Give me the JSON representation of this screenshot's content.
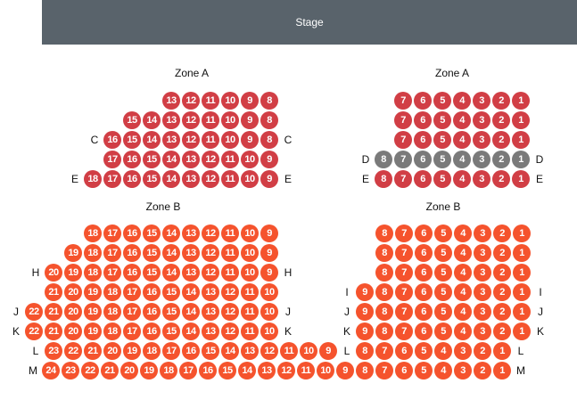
{
  "stage": {
    "label": "Stage"
  },
  "colors": {
    "zone_a": "#d13e45",
    "zone_b": "#f5532d",
    "unavailable": "#7a7a7a",
    "stage": "#59636b"
  },
  "sections": [
    {
      "title": "Zone A",
      "zone": "zone_a",
      "rows": [
        {
          "left": "",
          "right": "",
          "seats": [
            13,
            12,
            11,
            10,
            9,
            8
          ]
        },
        {
          "left": "",
          "right": "",
          "seats": [
            15,
            14,
            13,
            12,
            11,
            10,
            9,
            8
          ]
        },
        {
          "left": "C",
          "right": "C",
          "seats": [
            16,
            15,
            14,
            13,
            12,
            11,
            10,
            9,
            8
          ]
        },
        {
          "left": "",
          "right": "",
          "seats": [
            17,
            16,
            15,
            14,
            13,
            12,
            11,
            10,
            9
          ]
        },
        {
          "left": "E",
          "right": "E",
          "seats": [
            18,
            17,
            16,
            15,
            14,
            13,
            12,
            11,
            10,
            9
          ]
        }
      ]
    },
    {
      "title": "Zone A",
      "zone": "zone_a",
      "rows": [
        {
          "left": "",
          "right": "",
          "seats": [
            7,
            6,
            5,
            4,
            3,
            2,
            1
          ]
        },
        {
          "left": "",
          "right": "",
          "seats": [
            7,
            6,
            5,
            4,
            3,
            2,
            1
          ]
        },
        {
          "left": "",
          "right": "",
          "seats": [
            7,
            6,
            5,
            4,
            3,
            2,
            1
          ]
        },
        {
          "left": "D",
          "right": "D",
          "seats": [
            8,
            7,
            6,
            5,
            4,
            3,
            2,
            1
          ],
          "status": "unavailable"
        },
        {
          "left": "E",
          "right": "E",
          "seats": [
            8,
            7,
            6,
            5,
            4,
            3,
            2,
            1
          ]
        }
      ]
    },
    {
      "title": "Zone B",
      "zone": "zone_b",
      "rows": [
        {
          "left": "",
          "right": "",
          "seats": [
            18,
            17,
            16,
            15,
            14,
            13,
            12,
            11,
            10,
            9
          ]
        },
        {
          "left": "",
          "right": "",
          "seats": [
            19,
            18,
            17,
            16,
            15,
            14,
            13,
            12,
            11,
            10,
            9
          ]
        },
        {
          "left": "H",
          "right": "H",
          "seats": [
            20,
            19,
            18,
            17,
            16,
            15,
            14,
            13,
            12,
            11,
            10,
            9
          ]
        },
        {
          "left": "",
          "right": "",
          "seats": [
            21,
            20,
            19,
            18,
            17,
            16,
            15,
            14,
            13,
            12,
            11,
            10
          ]
        },
        {
          "left": "J",
          "right": "J",
          "seats": [
            22,
            21,
            20,
            19,
            18,
            17,
            16,
            15,
            14,
            13,
            12,
            11,
            10
          ]
        },
        {
          "left": "K",
          "right": "K",
          "seats": [
            22,
            21,
            20,
            19,
            18,
            17,
            16,
            15,
            14,
            13,
            12,
            11,
            10
          ]
        },
        {
          "left": "L",
          "right": "",
          "seats": [
            23,
            22,
            21,
            20,
            19,
            18,
            17,
            16,
            15,
            14,
            13,
            12,
            11,
            10,
            9
          ]
        },
        {
          "left": "M",
          "right": "",
          "seats": [
            24,
            23,
            22,
            21,
            20,
            19,
            18,
            17,
            16,
            15,
            14,
            13,
            12,
            11,
            10,
            9
          ]
        }
      ]
    },
    {
      "title": "Zone B",
      "zone": "zone_b",
      "rows": [
        {
          "left": "",
          "right": "",
          "seats": [
            8,
            7,
            6,
            5,
            4,
            3,
            2,
            1
          ]
        },
        {
          "left": "",
          "right": "",
          "seats": [
            8,
            7,
            6,
            5,
            4,
            3,
            2,
            1
          ]
        },
        {
          "left": "",
          "right": "",
          "seats": [
            8,
            7,
            6,
            5,
            4,
            3,
            2,
            1
          ]
        },
        {
          "left": "I",
          "right": "I",
          "seats": [
            9,
            8,
            7,
            6,
            5,
            4,
            3,
            2,
            1
          ]
        },
        {
          "left": "J",
          "right": "J",
          "seats": [
            9,
            8,
            7,
            6,
            5,
            4,
            3,
            2,
            1
          ]
        },
        {
          "left": "K",
          "right": "K",
          "seats": [
            9,
            8,
            7,
            6,
            5,
            4,
            3,
            2,
            1
          ]
        },
        {
          "left": "L",
          "right": "L",
          "seats": [
            8,
            7,
            6,
            5,
            4,
            3,
            2,
            1
          ]
        },
        {
          "left": "",
          "right": "M",
          "seats": [
            8,
            7,
            6,
            5,
            4,
            3,
            2,
            1
          ]
        }
      ]
    }
  ]
}
